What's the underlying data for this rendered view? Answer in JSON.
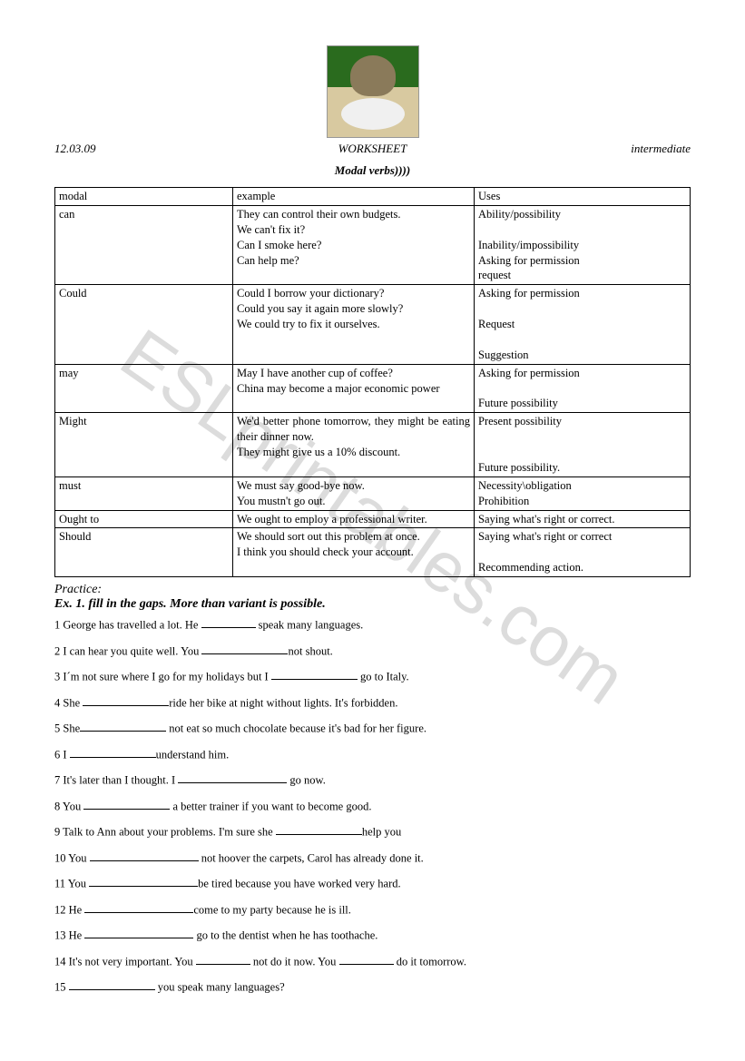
{
  "header": {
    "date": "12.03.09",
    "center": "WORKSHEET",
    "level": "intermediate"
  },
  "title": "Modal verbs))))",
  "watermark": "ESLprintables.com",
  "table": {
    "headers": {
      "modal": "modal",
      "example": "example",
      "uses": "Uses"
    },
    "rows": [
      {
        "modal": "can",
        "example": "They can control their own budgets.\nWe can't fix it?\nCan I smoke here?\nCan help me?",
        "uses": "Ability/possibility\n\nInability/impossibility\nAsking for permission\nrequest"
      },
      {
        "modal": "Could",
        "example": "Could I borrow your dictionary?\nCould you say it again more slowly?\nWe could try to fix it ourselves.",
        "uses": "Asking for permission\n\nRequest\n\nSuggestion"
      },
      {
        "modal": "may",
        "example": "May I have another cup of coffee?\nChina may become a major economic power",
        "uses": "Asking for permission\n\nFuture possibility"
      },
      {
        "modal": "Might",
        "example": "We'd better phone tomorrow, they might be eating their dinner now.\nThey might give us a 10% discount.",
        "uses": "Present possibility\n\n\nFuture possibility."
      },
      {
        "modal": "must",
        "example": "We must say good-bye now.\nYou mustn't go out.",
        "uses": "Necessity\\obligation\nProhibition"
      },
      {
        "modal": "Ought to",
        "example": "We ought to employ a professional writer.",
        "uses": "Saying what's right or correct."
      },
      {
        "modal": "Should",
        "example": "We should sort out this problem at once.\nI think you should check your account.",
        "uses": "Saying what's right or correct\n\nRecommending action."
      }
    ]
  },
  "practice_label": "Practice:",
  "exercise_title": "Ex. 1. fill in the gaps. More than variant is possible.",
  "items": [
    {
      "n": "1",
      "pre": "George has travelled a lot. He ",
      "bw": "b-sm",
      "post": " speak many languages."
    },
    {
      "n": "2",
      "pre": "I can hear you quite well. You ",
      "bw": "b-md",
      "post": "not shout."
    },
    {
      "n": "3",
      "pre": "I´m not sure where I go for my holidays but I ",
      "bw": "b-md",
      "post": " go to Italy."
    },
    {
      "n": "4",
      "pre": "She ",
      "bw": "b-md",
      "post": "ride her bike at night without lights.  It's forbidden."
    },
    {
      "n": "5",
      "pre": "She",
      "bw": "b-md",
      "post": " not eat so much chocolate because it's bad for her figure."
    },
    {
      "n": "6",
      "pre": "I ",
      "bw": "b-md",
      "post": "understand him."
    },
    {
      "n": "7",
      "pre": "It's later than I thought. I ",
      "bw": "b-lg",
      "post": " go now."
    },
    {
      "n": "8",
      "pre": "You ",
      "bw": "b-md",
      "post": " a better trainer if you want to become good."
    },
    {
      "n": "9",
      "pre": "Talk to Ann about your problems. I'm sure she  ",
      "bw": "b-md",
      "post": "help you"
    },
    {
      "n": "10",
      "pre": "You ",
      "bw": "b-lg",
      "post": " not hoover the carpets, Carol has already done it."
    },
    {
      "n": "11",
      "pre": "You  ",
      "bw": "b-lg",
      "post": "be tired because you have worked very hard."
    },
    {
      "n": "12",
      "pre": "He ",
      "bw": "b-lg",
      "post": "come to my party because he is ill."
    },
    {
      "n": "13",
      "pre": "He ",
      "bw": "b-lg",
      "post": " go to the dentist when he has toothache."
    },
    {
      "n": "14",
      "pre": "It's not very important. You ",
      "bw": "b-sm",
      "post": " not do it now. You ",
      "bw2": "b-sm",
      "post2": " do it tomorrow."
    },
    {
      "n": "15",
      "pre": "",
      "bw": "b-md",
      "post": " you speak many languages?"
    }
  ]
}
